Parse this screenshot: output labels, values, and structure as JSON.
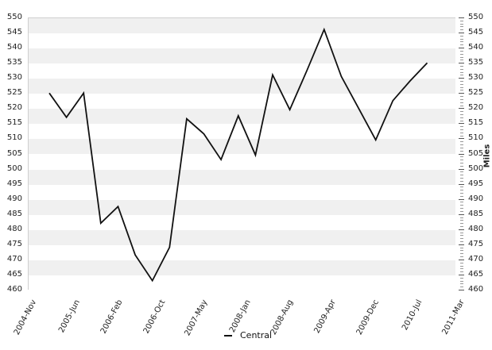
{
  "chart_data": {
    "type": "line",
    "title": "",
    "xlabel": "",
    "ylabel_right": "Miles",
    "ylim": [
      460,
      550
    ],
    "ytick_step": 5,
    "ytick_labels": [
      "550",
      "545",
      "540",
      "535",
      "530",
      "525",
      "520",
      "515",
      "510",
      "505",
      "500",
      "495",
      "490",
      "485",
      "480",
      "475",
      "470",
      "465",
      "460"
    ],
    "xtick_labels": [
      "2004-Nov",
      "2005-Jun",
      "2006-Feb",
      "2006-Oct",
      "2007-May",
      "2008-Jan",
      "2008-Aug",
      "2009-Apr",
      "2009-Dec",
      "2010-Jul",
      "2011-Mar"
    ],
    "series": [
      {
        "name": "Central",
        "color": "#111111",
        "values": [
          525,
          517,
          525,
          482,
          487.5,
          471.5,
          463,
          474,
          516.5,
          511.5,
          503,
          517.5,
          504.5,
          531,
          519.5,
          532.5,
          546,
          530.5,
          520,
          509.5,
          522.5,
          529,
          535
        ]
      }
    ],
    "legend": {
      "entries": [
        "Central"
      ],
      "position": "bottom-center"
    },
    "layout_hints": {
      "grid": "horizontal-alternating-bands",
      "band_color": "#f0f0f0",
      "band_alt_color": "#ffffff",
      "axis_color": "#cfcfcf",
      "minor_tick_color": "#999999",
      "major_tick_color": "#555555",
      "y_axis_both_sides": true,
      "right_axis_minor_ticks_every": 1
    }
  }
}
